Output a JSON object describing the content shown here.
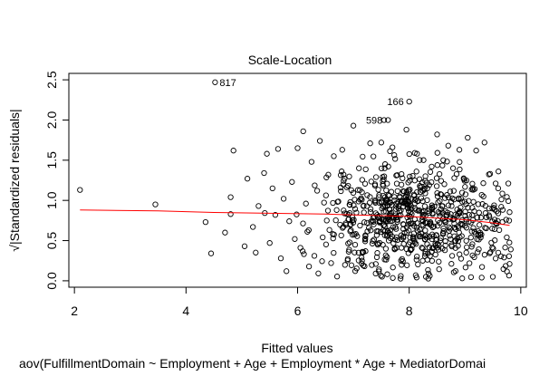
{
  "chart_data": {
    "type": "scatter",
    "title": "Scale-Location",
    "xlabel": "Fitted values",
    "caption": "aov(FulfillmentDomain ~ Employment + Age + Employment * Age + MediatorDomai",
    "ylabel": "√|Standardized residuals|",
    "xlim": [
      1.9,
      10.1
    ],
    "ylim": [
      -0.08,
      2.58
    ],
    "xticks": [
      2,
      4,
      6,
      8,
      10
    ],
    "yticks": [
      0.0,
      0.5,
      1.0,
      1.5,
      2.0,
      2.5
    ],
    "ytick_labels": [
      "0.0",
      "0.5",
      "1.0",
      "1.5",
      "2.0",
      "2.5"
    ],
    "smoother_color": "#ff0000",
    "smoother": {
      "x": [
        2.1,
        3.5,
        4.5,
        5.5,
        6.5,
        7.0,
        7.5,
        8.0,
        8.5,
        9.0,
        9.5,
        9.8
      ],
      "y": [
        0.88,
        0.87,
        0.85,
        0.84,
        0.83,
        0.82,
        0.81,
        0.8,
        0.78,
        0.76,
        0.72,
        0.69
      ]
    },
    "labeled_points": [
      {
        "label": "817",
        "x": 4.52,
        "y": 2.47
      },
      {
        "label": "166",
        "x": 8.0,
        "y": 2.23
      },
      {
        "label": "598",
        "x": 7.62,
        "y": 2.0
      }
    ],
    "extra_points": [
      [
        2.1,
        1.13
      ],
      [
        3.45,
        0.95
      ],
      [
        4.35,
        0.73
      ],
      [
        4.45,
        0.34
      ],
      [
        4.7,
        0.6
      ],
      [
        4.8,
        1.04
      ],
      [
        4.85,
        1.62
      ],
      [
        4.8,
        0.83
      ],
      [
        5.05,
        0.43
      ],
      [
        5.1,
        1.27
      ],
      [
        5.2,
        0.67
      ],
      [
        5.25,
        0.35
      ],
      [
        5.3,
        0.93
      ],
      [
        5.4,
        1.34
      ],
      [
        5.45,
        1.58
      ],
      [
        5.5,
        0.47
      ],
      [
        5.55,
        1.15
      ],
      [
        5.6,
        0.82
      ],
      [
        5.65,
        1.64
      ],
      [
        5.7,
        0.28
      ],
      [
        5.75,
        1.02
      ],
      [
        5.8,
        0.12
      ],
      [
        5.85,
        0.74
      ],
      [
        5.9,
        1.23
      ],
      [
        5.95,
        0.52
      ],
      [
        6.0,
        1.65
      ],
      [
        6.05,
        0.41
      ],
      [
        6.1,
        1.86
      ],
      [
        6.15,
        0.96
      ],
      [
        6.2,
        0.63
      ],
      [
        6.25,
        1.48
      ],
      [
        6.3,
        0.31
      ],
      [
        6.35,
        1.12
      ],
      [
        6.4,
        1.74
      ],
      [
        6.45,
        0.54
      ],
      [
        6.55,
        1.32
      ],
      [
        6.6,
        0.22
      ],
      [
        6.65,
        1.55
      ],
      [
        6.7,
        0.88
      ],
      [
        6.8,
        1.63
      ],
      [
        6.9,
        0.27
      ],
      [
        7.0,
        1.93
      ],
      [
        7.1,
        1.4
      ],
      [
        7.2,
        0.18
      ],
      [
        7.3,
        1.71
      ],
      [
        7.4,
        0.09
      ],
      [
        7.5,
        1.72
      ],
      [
        7.55,
        2.0
      ],
      [
        7.7,
        1.66
      ],
      [
        7.85,
        0.06
      ],
      [
        7.95,
        1.88
      ],
      [
        8.1,
        1.59
      ],
      [
        8.3,
        0.05
      ],
      [
        8.5,
        1.82
      ],
      [
        8.7,
        1.68
      ],
      [
        8.9,
        1.63
      ],
      [
        9.05,
        1.78
      ],
      [
        9.2,
        1.62
      ],
      [
        9.3,
        0.04
      ],
      [
        9.35,
        1.72
      ],
      [
        9.45,
        1.33
      ],
      [
        9.5,
        0.05
      ],
      [
        9.6,
        1.36
      ],
      [
        9.7,
        0.29
      ],
      [
        9.75,
        0.54
      ],
      [
        9.82,
        0.39
      ],
      [
        9.8,
        0.21
      ],
      [
        9.55,
        1.21
      ],
      [
        9.65,
        0.92
      ],
      [
        8.95,
        0.03
      ]
    ]
  }
}
